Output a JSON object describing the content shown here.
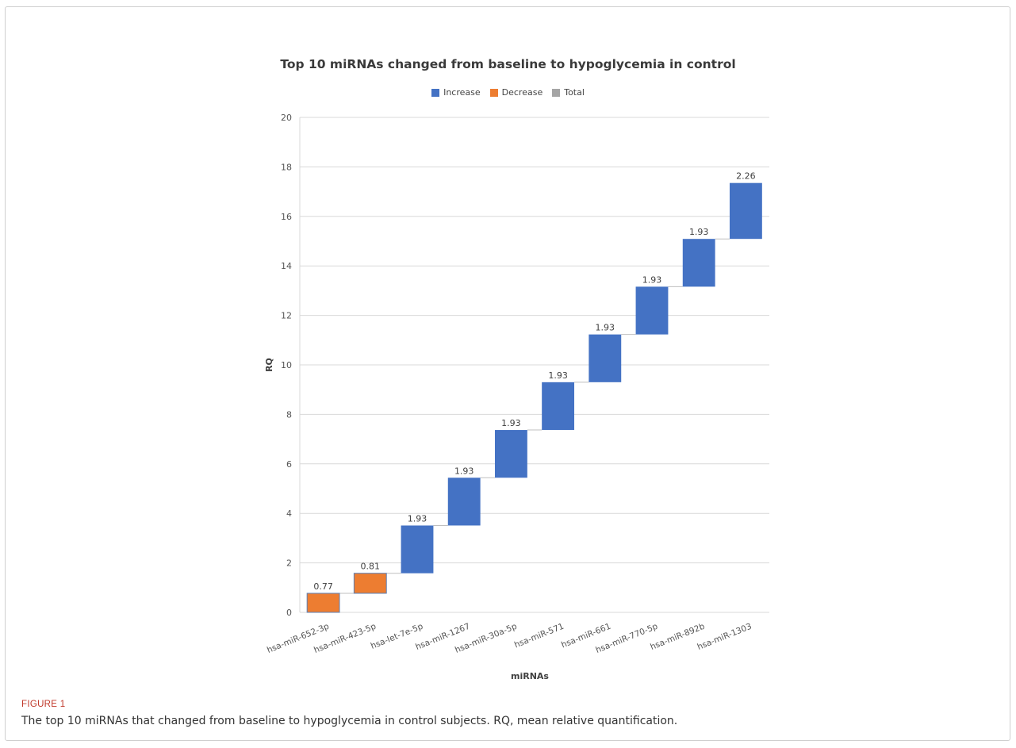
{
  "figure": {
    "label": "FIGURE 1",
    "caption": "The top 10 miRNAs that changed from baseline to hypoglycemia in control subjects. RQ, mean relative quantification."
  },
  "legend": {
    "items": [
      {
        "label": "Increase",
        "color": "#4472c4"
      },
      {
        "label": "Decrease",
        "color": "#ed7d31"
      },
      {
        "label": "Total",
        "color": "#a5a5a5"
      }
    ]
  },
  "chart_data": {
    "type": "bar",
    "subtype": "waterfall",
    "title": "Top 10 miRNAs changed from baseline to hypoglycemia in control",
    "xlabel": "miRNAs",
    "ylabel": "RQ",
    "ylim": [
      0,
      20
    ],
    "yticks": [
      0,
      2,
      4,
      6,
      8,
      10,
      12,
      14,
      16,
      18,
      20
    ],
    "grid": true,
    "legend_position": "top",
    "categories": [
      "hsa-miR-652-3p",
      "hsa-miR-423-5p",
      "hsa-let-7e-5p",
      "hsa-miR-1267",
      "hsa-miR-30a-5p",
      "hsa-miR-571",
      "hsa-miR-661",
      "hsa-miR-770-5p",
      "hsa-miR-892b",
      "hsa-miR-1303"
    ],
    "values": [
      0.77,
      0.81,
      1.93,
      1.93,
      1.93,
      1.93,
      1.93,
      1.93,
      1.93,
      2.26
    ],
    "value_labels": [
      "0.77",
      "0.81",
      "1.93",
      "1.93",
      "1.93",
      "1.93",
      "1.93",
      "1.93",
      "1.93",
      "2.26"
    ],
    "bar_types": [
      "Decrease",
      "Decrease",
      "Increase",
      "Increase",
      "Increase",
      "Increase",
      "Increase",
      "Increase",
      "Increase",
      "Increase"
    ]
  }
}
